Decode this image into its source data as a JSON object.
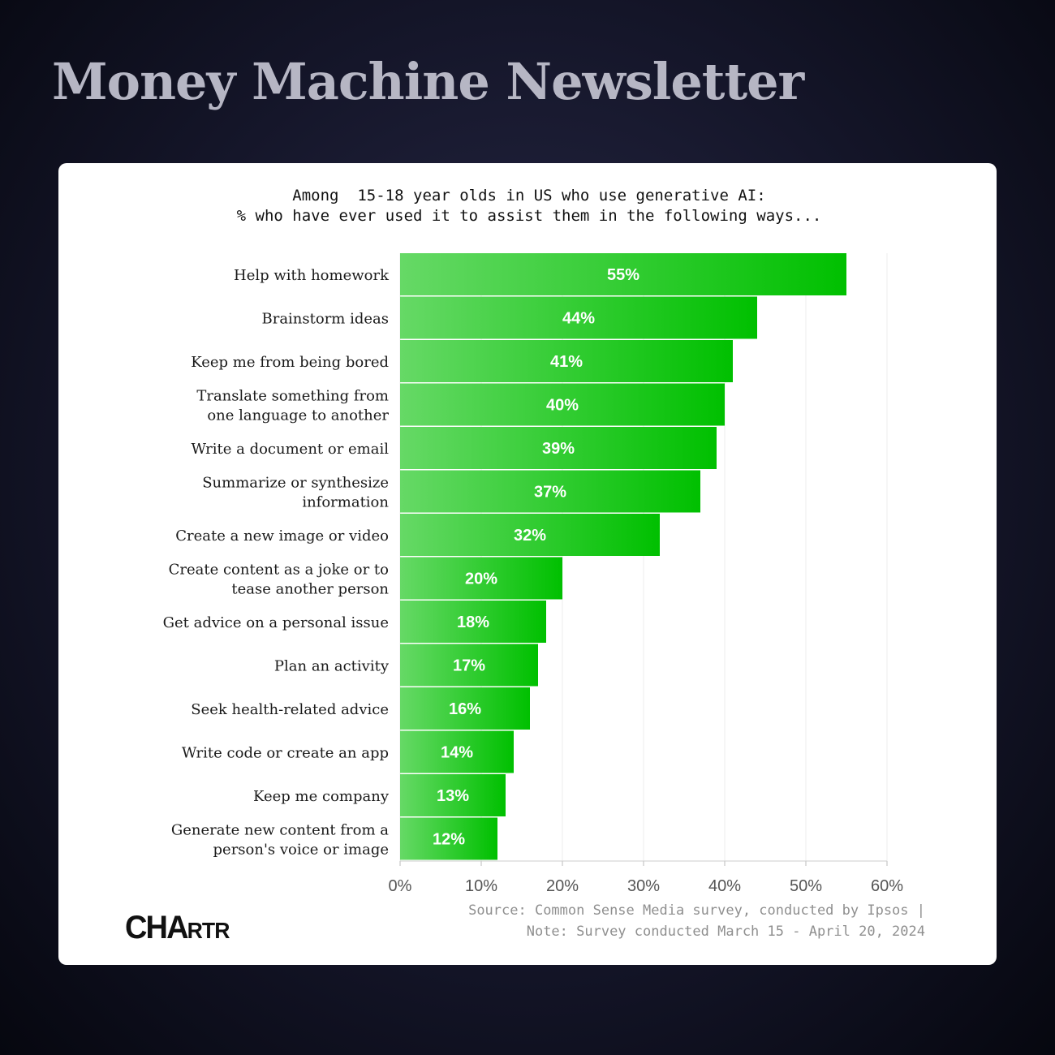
{
  "header": {
    "title": "Money Machine Newsletter"
  },
  "chart_heading": {
    "line1": "Among  15-18 year olds in US who use generative AI:",
    "line2": "% who have ever used it to assist them in the following ways..."
  },
  "chart_data": {
    "type": "bar",
    "orientation": "horizontal",
    "categories": [
      [
        "Help with homework"
      ],
      [
        "Brainstorm ideas"
      ],
      [
        "Keep me from being bored"
      ],
      [
        "Translate something from",
        "one language to another"
      ],
      [
        "Write a document or email"
      ],
      [
        "Summarize or synthesize",
        "information"
      ],
      [
        "Create a new image or video"
      ],
      [
        "Create content as a joke or to",
        "tease another person"
      ],
      [
        "Get advice on a personal issue"
      ],
      [
        "Plan an activity"
      ],
      [
        "Seek health-related advice"
      ],
      [
        "Write code or create an app"
      ],
      [
        "Keep me company"
      ],
      [
        "Generate new content from a",
        "person's voice or image"
      ]
    ],
    "values": [
      55,
      44,
      41,
      40,
      39,
      37,
      32,
      20,
      18,
      17,
      16,
      14,
      13,
      12
    ],
    "data_labels": [
      "55%",
      "44%",
      "41%",
      "40%",
      "39%",
      "37%",
      "32%",
      "20%",
      "18%",
      "17%",
      "16%",
      "14%",
      "13%",
      "12%"
    ],
    "xlim": [
      0,
      60
    ],
    "xticks": [
      0,
      10,
      20,
      30,
      40,
      50,
      60
    ],
    "xtick_labels": [
      "0%",
      "10%",
      "20%",
      "30%",
      "40%",
      "50%",
      "60%"
    ],
    "grid": "vertical",
    "colors": {
      "bar_start": "#66d966",
      "bar_end": "#00c000",
      "label": "#ffffff",
      "grid": "#ececec"
    }
  },
  "source": {
    "line1": "Source: Common Sense Media survey, conducted by Ipsos |",
    "line2": "Note: Survey conducted March 15 - April 20, 2024"
  },
  "logo": {
    "main": "CHA",
    "small": "RTR"
  }
}
